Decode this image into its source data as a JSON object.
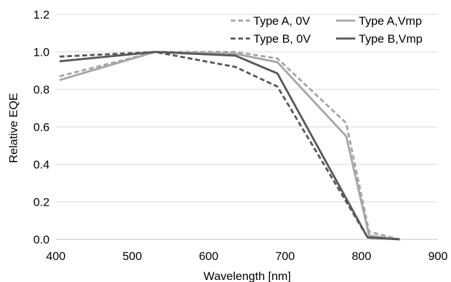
{
  "chart_data": {
    "type": "line",
    "xlabel": "Wavelength [nm]",
    "ylabel": "Relative EQE",
    "xlim": [
      400,
      900
    ],
    "ylim": [
      0,
      1.2
    ],
    "x_ticks": [
      400,
      500,
      600,
      700,
      800,
      900
    ],
    "y_ticks": [
      0,
      0.2,
      0.4,
      0.6,
      0.8,
      1.0,
      1.2
    ],
    "x_tick_labels": [
      "400",
      "500",
      "600",
      "700",
      "800",
      "900"
    ],
    "y_tick_labels": [
      "0.0",
      "0.2",
      "0.4",
      "0.6",
      "0.8",
      "1.0",
      "1.2"
    ],
    "grid": "horizontal",
    "legend_position": "top-right",
    "series": [
      {
        "name": "Type A, 0V",
        "style": "dashed",
        "color": "#a6a6a6",
        "x": [
          405,
          530,
          635,
          690,
          780,
          810,
          850
        ],
        "y": [
          0.87,
          1.0,
          1.0,
          0.965,
          0.62,
          0.04,
          0.0
        ]
      },
      {
        "name": "Type A,Vmp",
        "style": "solid",
        "color": "#a6a6a6",
        "x": [
          405,
          530,
          635,
          690,
          780,
          810,
          850
        ],
        "y": [
          0.85,
          1.0,
          0.99,
          0.945,
          0.55,
          0.02,
          0.0
        ]
      },
      {
        "name": "Type B, 0V",
        "style": "dashed",
        "color": "#595959",
        "x": [
          405,
          530,
          635,
          690,
          808,
          850
        ],
        "y": [
          0.975,
          1.0,
          0.92,
          0.815,
          0.01,
          0.0
        ]
      },
      {
        "name": "Type B,Vmp",
        "style": "solid",
        "color": "#595959",
        "x": [
          405,
          530,
          635,
          690,
          808,
          850
        ],
        "y": [
          0.95,
          1.0,
          0.98,
          0.885,
          0.01,
          0.0
        ]
      }
    ]
  }
}
